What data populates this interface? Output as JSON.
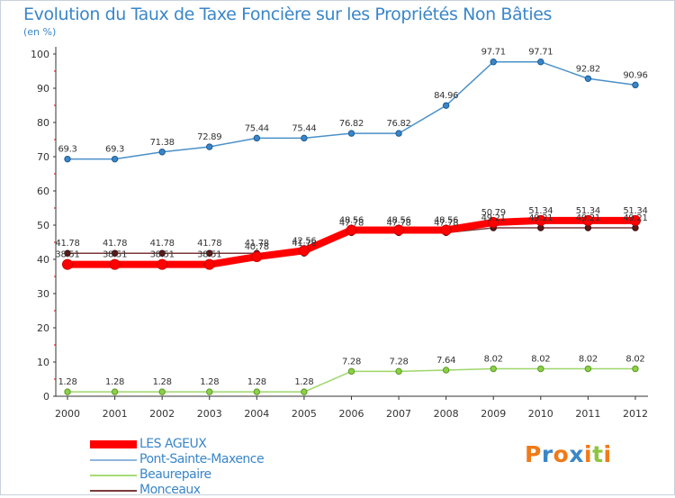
{
  "header": {
    "title": "Evolution du Taux de Taxe Foncière sur les Propriétés Non Bâties",
    "subtitle": "(en %)"
  },
  "chart_data": {
    "type": "line",
    "title": "Evolution du Taux de Taxe Foncière sur les Propriétés Non Bâties",
    "ylabel": "(en %)",
    "xlabel": "",
    "ylim": [
      0,
      100
    ],
    "yticks": [
      0,
      10,
      20,
      30,
      40,
      50,
      60,
      70,
      80,
      90,
      100
    ],
    "grid": false,
    "legend_position": "bottom-left",
    "x": [
      "2000",
      "2001",
      "2002",
      "2003",
      "2004",
      "2005",
      "2006",
      "2007",
      "2008",
      "2009",
      "2010",
      "2011",
      "2012"
    ],
    "series": [
      {
        "name": "LES AGEUX",
        "color": "#ff0000",
        "values": [
          38.51,
          38.51,
          38.51,
          38.51,
          40.78,
          42.56,
          48.56,
          48.56,
          48.56,
          50.79,
          51.34,
          51.34,
          51.34
        ],
        "labels": [
          "38.51",
          "38.51",
          "38.51",
          "38.51",
          "40.78",
          "42.56",
          "48.56",
          "48.56",
          "48.56",
          "50.79",
          "51.34",
          "51.34",
          "51.34"
        ]
      },
      {
        "name": "Pont-Sainte-Maxence",
        "color": "#4a90c8",
        "values": [
          69.3,
          69.3,
          71.38,
          72.89,
          75.44,
          75.44,
          76.82,
          76.82,
          84.96,
          97.71,
          97.71,
          92.82,
          90.96
        ],
        "labels": [
          "69.3",
          "69.3",
          "71.38",
          "72.89",
          "75.44",
          "75.44",
          "76.82",
          "76.82",
          "84.96",
          "97.71",
          "97.71",
          "92.82",
          "90.96"
        ]
      },
      {
        "name": "Beaurepaire",
        "color": "#9ed66a",
        "values": [
          1.28,
          1.28,
          1.28,
          1.28,
          1.28,
          1.28,
          7.28,
          7.28,
          7.64,
          8.02,
          8.02,
          8.02,
          8.02
        ],
        "labels": [
          "1.28",
          "1.28",
          "1.28",
          "1.28",
          "1.28",
          "1.28",
          "7.28",
          "7.28",
          "7.64",
          "8.02",
          "8.02",
          "8.02",
          "8.02"
        ]
      },
      {
        "name": "Monceaux",
        "color": "#7a3a3a",
        "values": [
          41.78,
          41.78,
          41.78,
          41.78,
          41.78,
          41.78,
          47.78,
          47.78,
          47.78,
          49.21,
          49.21,
          49.21,
          49.21
        ],
        "labels": [
          "41.78",
          "41.78",
          "41.78",
          "41.78",
          "41.78",
          "41.78",
          "47.78",
          "47.78",
          "47.78",
          "49.21",
          "49.21",
          "49.21",
          "49.21"
        ]
      }
    ]
  },
  "legend": {
    "items": [
      {
        "label": "LES AGEUX",
        "color": "#ff0000"
      },
      {
        "label": "Pont-Sainte-Maxence",
        "color": "#8fb6dc"
      },
      {
        "label": "Beaurepaire",
        "color": "#a8dc78"
      },
      {
        "label": "Monceaux",
        "color": "#7a3a3a"
      }
    ]
  },
  "logo": {
    "text": "Proxiti",
    "colors": [
      "#f07a18",
      "#3a86c8",
      "#f07a18",
      "#3a86c8",
      "#f07a18",
      "#8cc63e",
      "#f07a18"
    ]
  }
}
